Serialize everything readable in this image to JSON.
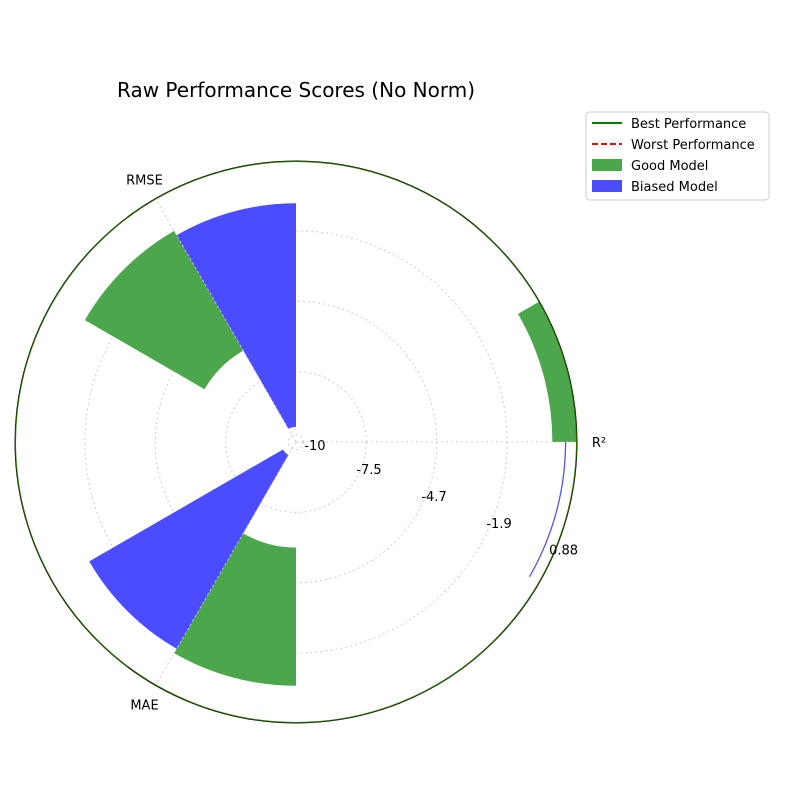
{
  "chart_data": {
    "type": "polar-bar",
    "title": "Raw Performance Scores (No Norm)",
    "categories": [
      "R²",
      "RMSE",
      "MAE"
    ],
    "category_angles_deg": [
      0,
      120,
      240
    ],
    "radial_ticks": [
      "-10",
      "-7.5",
      "-4.7",
      "-1.9",
      "0.88"
    ],
    "rlim": [
      -10.3,
      0.88
    ],
    "series": [
      {
        "name": "Good Model",
        "color": "#4ca64c",
        "values": [
          0.88,
          0.5,
          0.5
        ],
        "bases": [
          -0.1,
          -6.1,
          -6.1
        ]
      },
      {
        "name": "Biased Model",
        "color": "#4c4cff",
        "values": [
          0.75,
          0.5,
          0.5
        ],
        "bases": [
          0.4,
          -9.7,
          -9.7
        ]
      }
    ],
    "reference_lines": [
      {
        "name": "Best Performance",
        "color": "#008000",
        "style": "solid",
        "value": 0.88
      },
      {
        "name": "Worst Performance",
        "color": "#ff0000",
        "style": "dashed",
        "value": 0.88
      }
    ],
    "grid": true,
    "legend_position": "top-right outside"
  }
}
